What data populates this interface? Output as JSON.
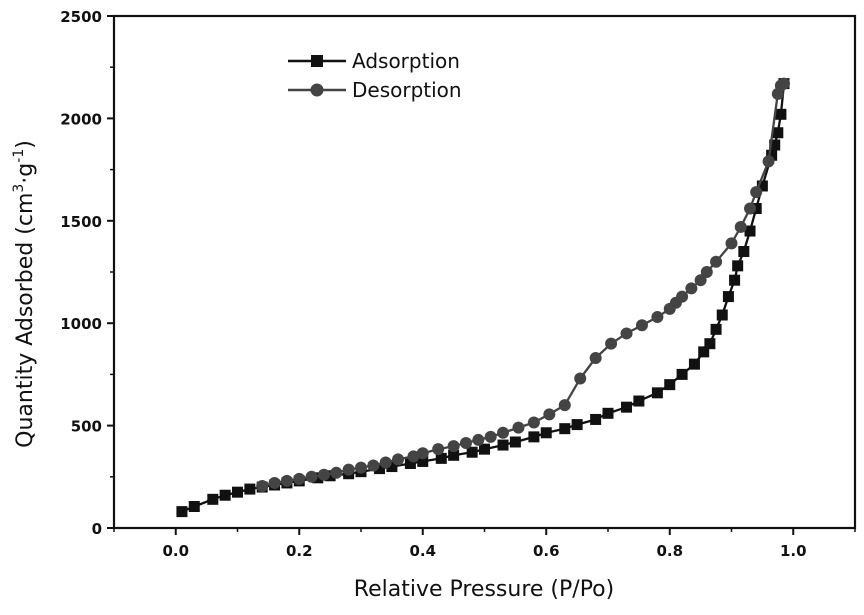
{
  "chart_data": {
    "type": "line",
    "title": "",
    "xlabel": "Relative Pressure (P/Po)",
    "ylabel": {
      "main": "Quantity Adsorbed (cm",
      "sup1": "3",
      "mid": "·g",
      "sup2": "-1",
      "end": ")"
    },
    "xlim": [
      -0.1,
      1.1
    ],
    "ylim": [
      0,
      2500
    ],
    "xticks": [
      "0.0",
      "0.2",
      "0.4",
      "0.6",
      "0.8",
      "1.0"
    ],
    "xtick_values": [
      0.0,
      0.2,
      0.4,
      0.6,
      0.8,
      1.0
    ],
    "yticks": [
      "0",
      "500",
      "1000",
      "1500",
      "2000",
      "2500"
    ],
    "ytick_values": [
      0,
      500,
      1000,
      1500,
      2000,
      2500
    ],
    "grid": false,
    "legend_position": "top-left",
    "series": [
      {
        "name": "Adsorption",
        "marker": "square",
        "color": "#111111",
        "x": [
          0.01,
          0.03,
          0.06,
          0.08,
          0.1,
          0.12,
          0.14,
          0.16,
          0.18,
          0.2,
          0.23,
          0.25,
          0.28,
          0.3,
          0.33,
          0.35,
          0.38,
          0.4,
          0.43,
          0.45,
          0.48,
          0.5,
          0.53,
          0.55,
          0.58,
          0.6,
          0.63,
          0.65,
          0.68,
          0.7,
          0.73,
          0.75,
          0.78,
          0.8,
          0.82,
          0.84,
          0.855,
          0.865,
          0.875,
          0.885,
          0.895,
          0.905,
          0.91,
          0.92,
          0.93,
          0.94,
          0.95,
          0.965,
          0.97,
          0.975,
          0.98,
          0.985
        ],
        "y": [
          80,
          105,
          140,
          160,
          175,
          190,
          200,
          210,
          220,
          230,
          245,
          255,
          265,
          275,
          290,
          300,
          315,
          325,
          340,
          355,
          370,
          385,
          405,
          420,
          445,
          465,
          485,
          505,
          530,
          560,
          590,
          620,
          660,
          700,
          750,
          800,
          860,
          900,
          970,
          1040,
          1130,
          1210,
          1280,
          1350,
          1450,
          1560,
          1670,
          1820,
          1870,
          1930,
          2020,
          2170
        ]
      },
      {
        "name": "Desorption",
        "marker": "circle",
        "color": "#444444",
        "x": [
          0.985,
          0.98,
          0.975,
          0.96,
          0.94,
          0.93,
          0.915,
          0.9,
          0.875,
          0.86,
          0.85,
          0.835,
          0.82,
          0.81,
          0.8,
          0.78,
          0.755,
          0.73,
          0.705,
          0.68,
          0.655,
          0.63,
          0.605,
          0.58,
          0.555,
          0.53,
          0.51,
          0.49,
          0.47,
          0.45,
          0.425,
          0.4,
          0.385,
          0.36,
          0.34,
          0.32,
          0.3,
          0.28,
          0.26,
          0.24,
          0.22,
          0.2,
          0.18,
          0.16,
          0.14
        ],
        "y": [
          2170,
          2160,
          2120,
          1790,
          1640,
          1560,
          1470,
          1390,
          1300,
          1250,
          1210,
          1170,
          1130,
          1100,
          1070,
          1030,
          990,
          950,
          900,
          830,
          730,
          600,
          555,
          515,
          490,
          465,
          445,
          430,
          415,
          400,
          385,
          365,
          350,
          335,
          320,
          305,
          295,
          285,
          270,
          260,
          250,
          240,
          230,
          220,
          205
        ]
      }
    ]
  }
}
